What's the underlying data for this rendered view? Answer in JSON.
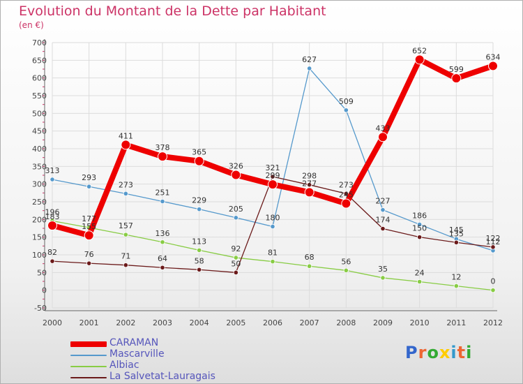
{
  "chart_data": {
    "type": "line",
    "title": "Evolution du Montant de la Dette par Habitant",
    "subtitle": "(en €)",
    "x": [
      "2000",
      "2001",
      "2002",
      "2003",
      "2004",
      "2005",
      "2006",
      "2007",
      "2008",
      "2009",
      "2010",
      "2011",
      "2012"
    ],
    "ylim": [
      -50,
      700
    ],
    "yticks": [
      -50,
      0,
      50,
      100,
      150,
      200,
      250,
      300,
      350,
      400,
      450,
      500,
      550,
      600,
      650,
      700
    ],
    "grid": true,
    "legend_position": "bottom-left",
    "series": [
      {
        "name": "CARAMAN",
        "color": "#ee0000",
        "values": [
          183,
          155,
          411,
          378,
          365,
          326,
          299,
          277,
          245,
          433,
          652,
          599,
          634
        ]
      },
      {
        "name": "Mascarville",
        "color": "#5599cc",
        "values": [
          313,
          293,
          273,
          251,
          229,
          205,
          180,
          627,
          509,
          227,
          186,
          145,
          112
        ]
      },
      {
        "name": "Albiac",
        "color": "#88cc44",
        "values": [
          196,
          177,
          157,
          136,
          113,
          92,
          81,
          68,
          56,
          35,
          24,
          12,
          0
        ]
      },
      {
        "name": "La Salvetat-Lauragais",
        "color": "#6b1a1a",
        "values": [
          82,
          76,
          71,
          64,
          58,
          50,
          321,
          298,
          273,
          174,
          150,
          135,
          122
        ]
      }
    ]
  },
  "logo": {
    "text": "Proxiti",
    "letter_colors": [
      "#3366cc",
      "#ee6633",
      "#33aa33",
      "#ffcc00",
      "#3399cc",
      "#ee6633",
      "#33aa33"
    ]
  }
}
